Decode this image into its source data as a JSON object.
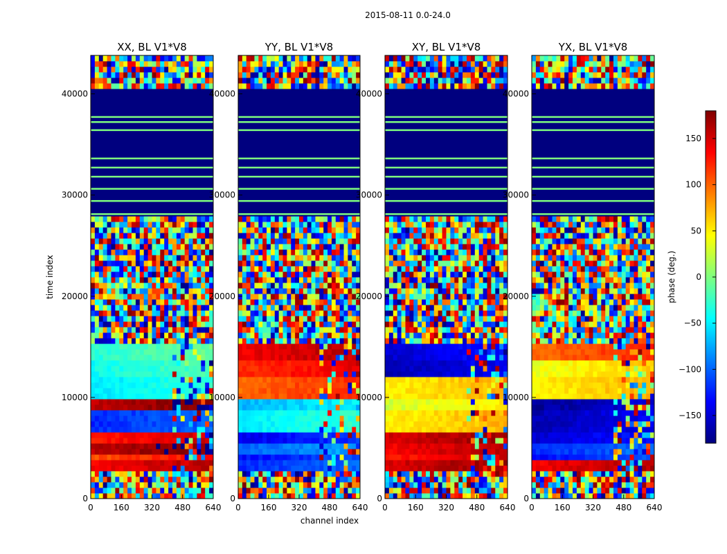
{
  "figure_title": "2015-08-11 0.0-24.0",
  "ylabel": "time index",
  "xlabel": "channel index",
  "colors": {
    "jet_stops": [
      "#00007f",
      "#0000ff",
      "#007fff",
      "#00ffff",
      "#7fff7f",
      "#ffff00",
      "#ff7f00",
      "#ff0000",
      "#7f0000"
    ]
  },
  "chart_data": [
    {
      "type": "heatmap",
      "title": "XX, BL V1*V8",
      "xlim": [
        0,
        640
      ],
      "ylim": [
        0,
        43800
      ],
      "xticks": [
        "0",
        "160",
        "320",
        "480",
        "640"
      ],
      "yticks": [
        "0",
        "10000",
        "20000",
        "30000",
        "40000"
      ]
    },
    {
      "type": "heatmap",
      "title": "YY, BL V1*V8",
      "xlim": [
        0,
        640
      ],
      "ylim": [
        0,
        43800
      ],
      "xticks": [
        "0",
        "160",
        "320",
        "480",
        "640"
      ],
      "yticks": [
        "0",
        "10000",
        "20000",
        "30000",
        "40000"
      ]
    },
    {
      "type": "heatmap",
      "title": "XY, BL V1*V8",
      "xlim": [
        0,
        640
      ],
      "ylim": [
        0,
        43800
      ],
      "xticks": [
        "0",
        "160",
        "320",
        "480",
        "640"
      ],
      "yticks": [
        "0",
        "10000",
        "20000",
        "30000",
        "40000"
      ]
    },
    {
      "type": "heatmap",
      "title": "YX, BL V1*V8",
      "xlim": [
        0,
        640
      ],
      "ylim": [
        0,
        43800
      ],
      "xticks": [
        "0",
        "160",
        "320",
        "480",
        "640"
      ],
      "yticks": [
        "0",
        "10000",
        "20000",
        "30000",
        "40000"
      ]
    }
  ],
  "colorbar": {
    "label": "phase (deg.)",
    "range": [
      -180,
      180
    ],
    "ticks": [
      "150",
      "100",
      "50",
      "0",
      "−50",
      "−100",
      "−150"
    ],
    "tick_values": [
      150,
      100,
      50,
      0,
      -50,
      -100,
      -150
    ]
  }
}
